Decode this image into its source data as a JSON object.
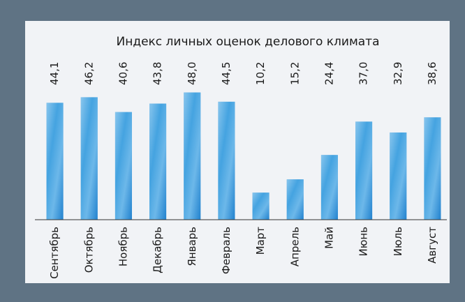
{
  "chart_data": {
    "type": "bar",
    "title": "Индекс личных оценок делового климата",
    "categories": [
      "Сентябрь",
      "Октябрь",
      "Ноябрь",
      "Декабрь",
      "Январь",
      "Февраль",
      "Март",
      "Апрель",
      "Май",
      "Июнь",
      "Июль",
      "Август"
    ],
    "values": [
      44.1,
      46.2,
      40.6,
      43.8,
      48.0,
      44.5,
      10.2,
      15.2,
      24.4,
      37.0,
      32.9,
      38.6
    ],
    "value_labels": [
      "44,1",
      "46,2",
      "40,6",
      "43,8",
      "48,0",
      "44,5",
      "10,2",
      "15,2",
      "24,4",
      "37,0",
      "32,9",
      "38,6"
    ],
    "color": "#2f8fd6",
    "ylim": [
      0,
      50
    ]
  }
}
